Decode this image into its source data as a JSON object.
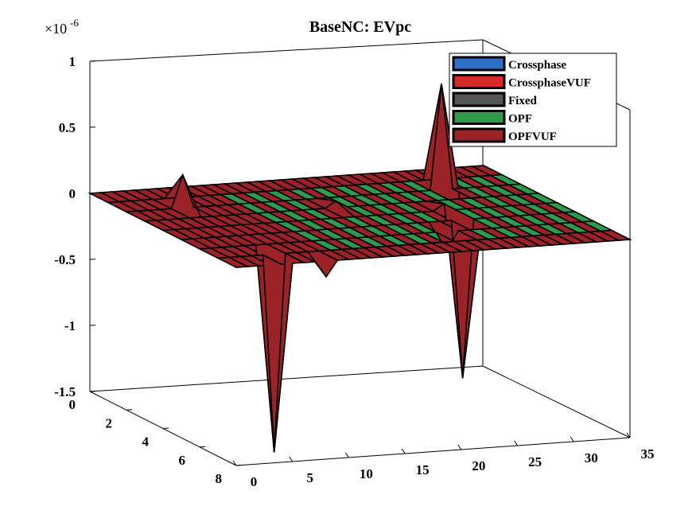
{
  "chart_data": {
    "type": "surface3d",
    "title": "BaseNC: EVpc",
    "xlabel": "",
    "ylabel": "",
    "zlabel": "",
    "x_range": [
      0,
      35
    ],
    "y_range": [
      0,
      8
    ],
    "z_range": [
      -1.5,
      1
    ],
    "z_multiplier": "×10",
    "z_multiplier_exponent": "-6",
    "x_ticks": [
      "0",
      "5",
      "10",
      "15",
      "20",
      "25",
      "30",
      "35"
    ],
    "y_ticks": [
      "0",
      "2",
      "4",
      "6",
      "8"
    ],
    "z_ticks": [
      "1",
      "0.5",
      "0",
      "-0.5",
      "-1",
      "-1.5"
    ],
    "grid": false,
    "legend_position": "top-right",
    "series": [
      {
        "name": "Crossphase",
        "color": "#2e6fc9"
      },
      {
        "name": "CrossphaseVUF",
        "color": "#d42a2a"
      },
      {
        "name": "Fixed",
        "color": "#555555"
      },
      {
        "name": "OPF",
        "color": "#2f9a4a"
      },
      {
        "name": "OPFVUF",
        "color": "#9b2226"
      }
    ],
    "surface": {
      "base_value": 0,
      "peaks": [
        {
          "x": 5,
          "y": 7,
          "z": -1.5
        },
        {
          "x": 5,
          "y": 2,
          "z": 0.25
        },
        {
          "x": 25,
          "y": 5,
          "z": -1.2
        },
        {
          "x": 28,
          "y": 2,
          "z": 0.8
        },
        {
          "x": 25,
          "y": 4,
          "z": 0.05
        },
        {
          "x": 22,
          "y": 6,
          "z": -0.15
        },
        {
          "x": 17,
          "y": 3,
          "z": 0.05
        },
        {
          "x": 8,
          "y": 8,
          "z": -0.12
        }
      ]
    }
  }
}
